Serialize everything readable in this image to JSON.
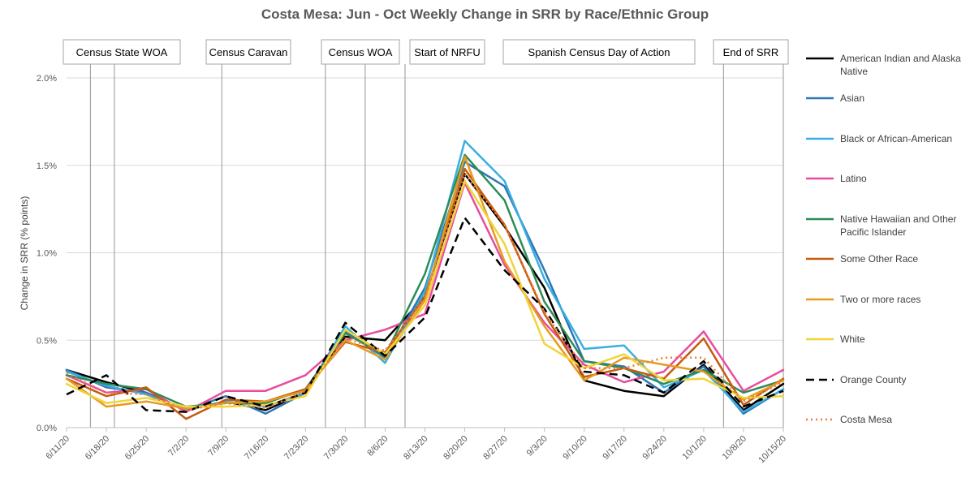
{
  "chart_data": {
    "type": "line",
    "title": "Costa Mesa: Jun - Oct Weekly Change in SRR by Race/Ethnic Group",
    "xlabel": "",
    "ylabel": "Change in SRR (% points)",
    "ylim": [
      0,
      2.0
    ],
    "yticks": [
      "0.0%",
      "0.5%",
      "1.0%",
      "1.5%",
      "2.0%"
    ],
    "ytick_values": [
      0,
      0.5,
      1.0,
      1.5,
      2.0
    ],
    "categories": [
      "6/11/20",
      "6/18/20",
      "6/25/20",
      "7/2/20",
      "7/9/20",
      "7/16/20",
      "7/23/20",
      "7/30/20",
      "8/6/20",
      "8/13/20",
      "8/20/20",
      "8/27/20",
      "9/3/20",
      "9/10/20",
      "9/17/20",
      "9/24/20",
      "10/1/20",
      "10/8/20",
      "10/15/20"
    ],
    "events": [
      {
        "label": "Census State WOA",
        "lines": [
          0.6,
          1.2
        ]
      },
      {
        "label": "Census Caravan",
        "lines": [
          3.9
        ]
      },
      {
        "label": "Census WOA",
        "lines": [
          6.5,
          7.5
        ]
      },
      {
        "label": "Start of NRFU",
        "lines": [
          8.5
        ]
      },
      {
        "label": "Spanish Census Day of Action",
        "lines": [
          16.5
        ]
      },
      {
        "label": "End of SRR",
        "lines": [
          18.0
        ]
      }
    ],
    "series": [
      {
        "name": "American Indian and Alaska Native",
        "color": "#000000",
        "dash": "",
        "width": 2.5,
        "values": [
          0.33,
          0.26,
          0.2,
          0.1,
          0.15,
          0.1,
          0.2,
          0.52,
          0.5,
          0.75,
          1.45,
          1.15,
          0.8,
          0.27,
          0.21,
          0.18,
          0.36,
          0.1,
          0.25
        ]
      },
      {
        "name": "Asian",
        "color": "#2E75B6",
        "dash": "",
        "width": 2.5,
        "values": [
          0.33,
          0.23,
          0.2,
          0.1,
          0.18,
          0.08,
          0.2,
          0.55,
          0.4,
          0.8,
          1.52,
          1.38,
          0.9,
          0.38,
          0.35,
          0.2,
          0.35,
          0.08,
          0.22
        ]
      },
      {
        "name": "Black or African-American",
        "color": "#3AAEE0",
        "dash": "",
        "width": 2.5,
        "values": [
          0.32,
          0.24,
          0.19,
          0.1,
          0.15,
          0.12,
          0.2,
          0.58,
          0.37,
          0.78,
          1.64,
          1.41,
          0.85,
          0.45,
          0.47,
          0.23,
          0.33,
          0.09,
          0.22
        ]
      },
      {
        "name": "Latino",
        "color": "#E84C9F",
        "dash": "",
        "width": 2.5,
        "values": [
          0.3,
          0.2,
          0.22,
          0.09,
          0.21,
          0.21,
          0.3,
          0.5,
          0.56,
          0.65,
          1.4,
          0.93,
          0.6,
          0.36,
          0.26,
          0.32,
          0.55,
          0.21,
          0.33
        ]
      },
      {
        "name": "Native Hawaiian and Other Pacific Islander",
        "color": "#2E8B57",
        "dash": "",
        "width": 2.5,
        "values": [
          0.3,
          0.25,
          0.22,
          0.12,
          0.14,
          0.14,
          0.22,
          0.54,
          0.41,
          0.88,
          1.56,
          1.3,
          0.72,
          0.38,
          0.34,
          0.25,
          0.33,
          0.2,
          0.27
        ]
      },
      {
        "name": "Some Other Race",
        "color": "#C55A11",
        "dash": "",
        "width": 2.5,
        "values": [
          0.28,
          0.18,
          0.23,
          0.05,
          0.16,
          0.15,
          0.22,
          0.49,
          0.43,
          0.75,
          1.48,
          1.16,
          0.65,
          0.29,
          0.34,
          0.28,
          0.51,
          0.13,
          0.28
        ]
      },
      {
        "name": "Two or more races",
        "color": "#E69B1E",
        "dash": "",
        "width": 2.5,
        "values": [
          0.28,
          0.12,
          0.15,
          0.11,
          0.14,
          0.15,
          0.21,
          0.5,
          0.39,
          0.73,
          1.55,
          0.95,
          0.58,
          0.27,
          0.4,
          0.36,
          0.32,
          0.16,
          0.27
        ]
      },
      {
        "name": "White",
        "color": "#F0D43A",
        "dash": "",
        "width": 2.5,
        "values": [
          0.25,
          0.14,
          0.17,
          0.12,
          0.12,
          0.13,
          0.18,
          0.56,
          0.42,
          0.7,
          1.41,
          1.05,
          0.48,
          0.34,
          0.42,
          0.27,
          0.28,
          0.17,
          0.18
        ]
      },
      {
        "name": "Orange County",
        "color": "#000000",
        "dash": "10,6",
        "width": 2.5,
        "values": [
          0.19,
          0.3,
          0.1,
          0.09,
          0.18,
          0.12,
          0.2,
          0.6,
          0.41,
          0.63,
          1.2,
          0.9,
          0.68,
          0.32,
          0.3,
          0.2,
          0.38,
          0.12,
          0.21
        ]
      },
      {
        "name": "Costa Mesa",
        "color": "#ED7D31",
        "dash": "2,4",
        "width": 2.5,
        "values": [
          0.31,
          0.2,
          0.19,
          0.1,
          0.14,
          0.11,
          0.21,
          0.51,
          0.44,
          0.74,
          1.45,
          1.16,
          0.66,
          0.34,
          0.34,
          0.4,
          0.4,
          0.15,
          0.26
        ]
      }
    ],
    "legend_position": "right"
  }
}
